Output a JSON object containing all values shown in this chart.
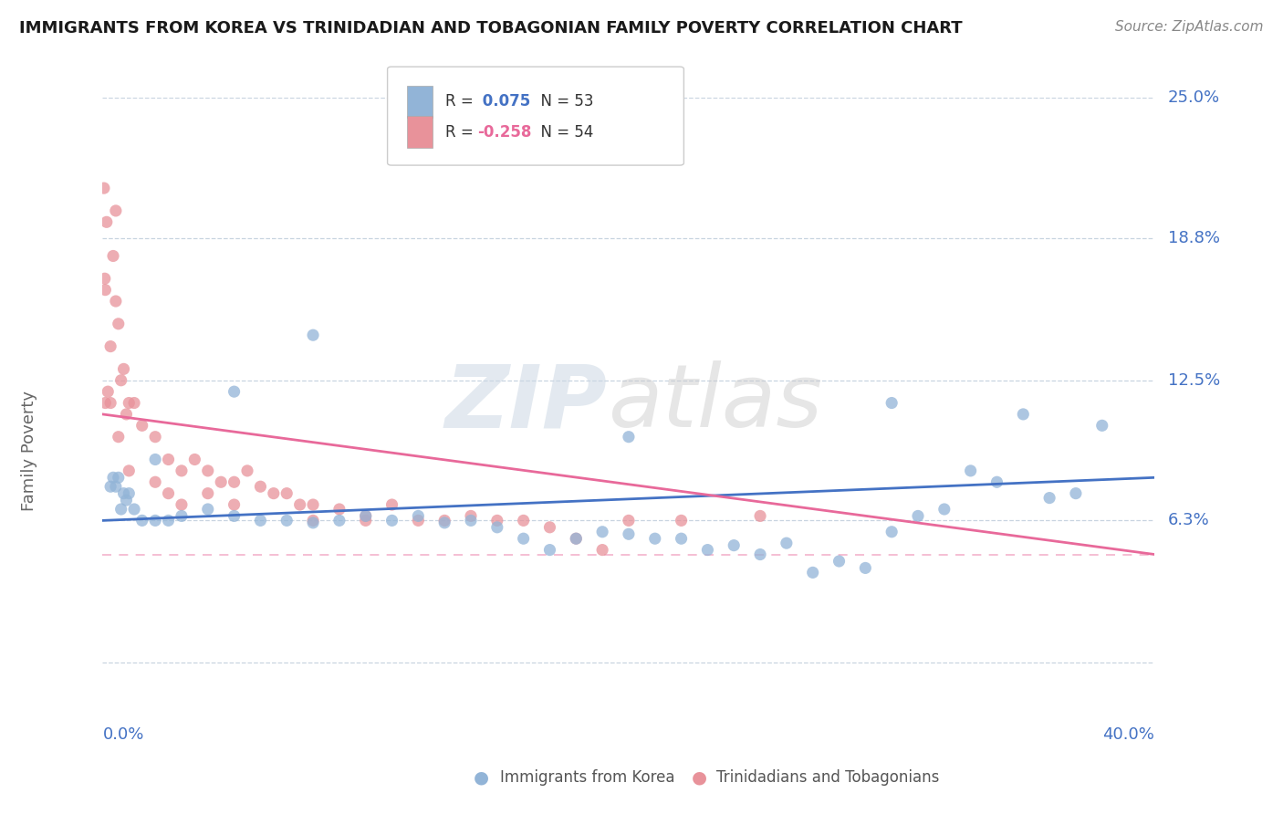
{
  "title": "IMMIGRANTS FROM KOREA VS TRINIDADIAN AND TOBAGONIAN FAMILY POVERTY CORRELATION CHART",
  "source_text": "Source: ZipAtlas.com",
  "ylabel": "Family Poverty",
  "x_min": 0.0,
  "x_max": 40.0,
  "y_min": -0.02,
  "y_max": 0.25,
  "y_tick_vals": [
    0.063,
    0.125,
    0.188,
    0.25
  ],
  "y_tick_labels": [
    "6.3%",
    "12.5%",
    "18.8%",
    "25.0%"
  ],
  "korea_R": "0.075",
  "korea_N": "53",
  "tt_R": "-0.258",
  "tt_N": "54",
  "korea_color": "#92b4d7",
  "tt_color": "#e8929a",
  "korea_line_color": "#4472c4",
  "tt_line_color": "#e8699a",
  "label_color": "#4472c4",
  "title_color": "#1a1a1a",
  "axis_label_color": "#666666",
  "source_color": "#888888",
  "bottom_legend_color": "#555555",
  "korea_line_start_y": 0.063,
  "korea_line_end_y": 0.082,
  "tt_line_start_y": 0.11,
  "tt_line_end_y": 0.048,
  "korea_scatter_x": [
    0.3,
    0.4,
    0.5,
    0.6,
    0.7,
    0.8,
    0.9,
    1.0,
    1.2,
    1.5,
    2.0,
    2.5,
    3.0,
    4.0,
    5.0,
    6.0,
    7.0,
    8.0,
    9.0,
    10.0,
    11.0,
    12.0,
    13.0,
    14.0,
    15.0,
    16.0,
    17.0,
    18.0,
    19.0,
    20.0,
    21.0,
    22.0,
    23.0,
    24.0,
    25.0,
    26.0,
    27.0,
    28.0,
    29.0,
    30.0,
    31.0,
    32.0,
    33.0,
    34.0,
    35.0,
    36.0,
    37.0,
    30.0,
    8.0,
    20.0,
    5.0,
    2.0,
    38.0
  ],
  "korea_scatter_y": [
    0.078,
    0.082,
    0.078,
    0.082,
    0.068,
    0.075,
    0.072,
    0.075,
    0.068,
    0.063,
    0.063,
    0.063,
    0.065,
    0.068,
    0.065,
    0.063,
    0.063,
    0.062,
    0.063,
    0.065,
    0.063,
    0.065,
    0.062,
    0.063,
    0.06,
    0.055,
    0.05,
    0.055,
    0.058,
    0.057,
    0.055,
    0.055,
    0.05,
    0.052,
    0.048,
    0.053,
    0.04,
    0.045,
    0.042,
    0.058,
    0.065,
    0.068,
    0.085,
    0.08,
    0.11,
    0.073,
    0.075,
    0.115,
    0.145,
    0.1,
    0.12,
    0.09,
    0.105
  ],
  "tt_scatter_x": [
    0.1,
    0.2,
    0.3,
    0.4,
    0.5,
    0.6,
    0.7,
    0.8,
    0.9,
    1.0,
    1.2,
    1.5,
    2.0,
    2.5,
    3.0,
    3.5,
    4.0,
    4.5,
    5.0,
    5.5,
    6.0,
    6.5,
    7.0,
    7.5,
    8.0,
    9.0,
    10.0,
    11.0,
    12.0,
    13.0,
    14.0,
    15.0,
    16.0,
    17.0,
    18.0,
    19.0,
    20.0,
    0.1,
    0.15,
    0.08,
    0.05,
    0.5,
    5.0,
    25.0,
    22.0,
    10.0,
    8.0,
    0.3,
    0.6,
    2.5,
    4.0,
    3.0,
    1.0,
    2.0
  ],
  "tt_scatter_y": [
    0.115,
    0.12,
    0.14,
    0.18,
    0.16,
    0.15,
    0.125,
    0.13,
    0.11,
    0.115,
    0.115,
    0.105,
    0.1,
    0.09,
    0.085,
    0.09,
    0.085,
    0.08,
    0.08,
    0.085,
    0.078,
    0.075,
    0.075,
    0.07,
    0.07,
    0.068,
    0.065,
    0.07,
    0.063,
    0.063,
    0.065,
    0.063,
    0.063,
    0.06,
    0.055,
    0.05,
    0.063,
    0.165,
    0.195,
    0.17,
    0.21,
    0.2,
    0.07,
    0.065,
    0.063,
    0.063,
    0.063,
    0.115,
    0.1,
    0.075,
    0.075,
    0.07,
    0.085,
    0.08
  ]
}
